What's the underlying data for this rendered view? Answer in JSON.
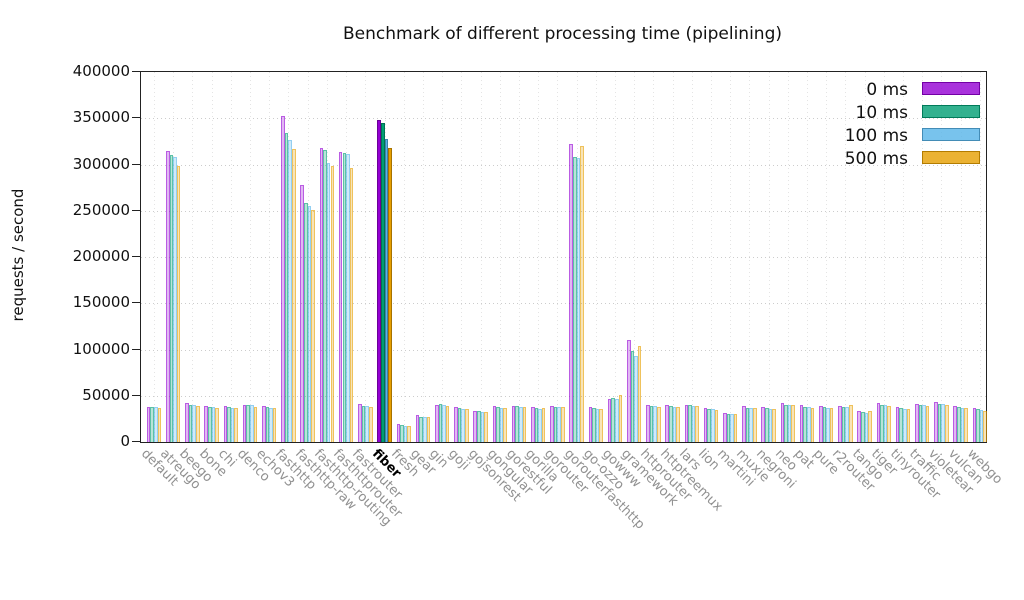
{
  "page_title": "Benchmark of different processing time (pipelining)",
  "chart_data": {
    "type": "bar",
    "title": "Benchmark of different processing time (pipelining)",
    "xlabel": "",
    "ylabel": "requests / second",
    "ylim": [
      0,
      400000
    ],
    "ytick_step": 50000,
    "grid": true,
    "legend_position": "top-right",
    "highlight_category": "fiber",
    "legend": [
      {
        "label": "0 ms",
        "color": "#9400d3"
      },
      {
        "label": "10 ms",
        "color": "#009e73"
      },
      {
        "label": "100 ms",
        "color": "#56b4e9"
      },
      {
        "label": "500 ms",
        "color": "#e69f00"
      }
    ],
    "categories": [
      "default",
      "atreugo",
      "beego",
      "bone",
      "chi",
      "denco",
      "echov3",
      "fasthttp",
      "fasthttp-raw",
      "fasthttp-routing",
      "fasthttprouter",
      "fastrouter",
      "fiber",
      "fresh",
      "gear",
      "gin",
      "goji",
      "gojsonrest",
      "gongular",
      "gorestful",
      "gorilla",
      "gorouter",
      "gorouterfasthttp",
      "go-ozzo",
      "gowww",
      "gramework",
      "httprouter",
      "httptreemux",
      "lars",
      "lion",
      "martini",
      "muxie",
      "negroni",
      "neo",
      "pat",
      "pure",
      "r2router",
      "tango",
      "tiger",
      "tinyrouter",
      "traffic",
      "violetear",
      "vulcan",
      "webgo"
    ],
    "series": [
      {
        "name": "0 ms",
        "values": [
          38000,
          315000,
          42000,
          38500,
          38500,
          40500,
          38500,
          352000,
          278000,
          318000,
          313000,
          41500,
          348000,
          19000,
          29000,
          40500,
          37500,
          34000,
          38500,
          39000,
          37500,
          39000,
          322000,
          37500,
          46500,
          110000,
          40000,
          39500,
          40000,
          37000,
          31500,
          38500,
          37500,
          42000,
          39500,
          38500,
          39000,
          33000,
          42000,
          37500,
          41500,
          43000,
          38500,
          36500
        ]
      },
      {
        "name": "10 ms",
        "values": [
          37500,
          310000,
          40500,
          37500,
          37500,
          39500,
          37500,
          334000,
          258000,
          316000,
          312000,
          39000,
          345000,
          18000,
          27500,
          41000,
          36500,
          33000,
          37500,
          38500,
          36500,
          38000,
          308000,
          36500,
          48000,
          98000,
          39000,
          38500,
          39500,
          36000,
          30500,
          37000,
          36500,
          40500,
          38000,
          37500,
          38000,
          32000,
          40000,
          36500,
          40000,
          41500,
          37500,
          35500
        ]
      },
      {
        "name": "100 ms",
        "values": [
          37500,
          308000,
          40000,
          37500,
          37000,
          39500,
          37000,
          327000,
          255000,
          302000,
          311000,
          39000,
          328000,
          17500,
          27000,
          40000,
          36000,
          32500,
          37000,
          38000,
          36000,
          38000,
          307000,
          36000,
          47000,
          93000,
          39000,
          38000,
          39000,
          35500,
          30500,
          37000,
          36000,
          40000,
          37500,
          37000,
          37500,
          31500,
          39500,
          36000,
          39500,
          41000,
          37000,
          35000
        ]
      },
      {
        "name": "500 ms",
        "values": [
          36500,
          298000,
          39000,
          37000,
          36500,
          38000,
          36500,
          317000,
          251000,
          298000,
          296000,
          38000,
          318000,
          17500,
          26500,
          38500,
          35500,
          32000,
          36500,
          37500,
          37000,
          37500,
          320000,
          36000,
          50500,
          104000,
          38000,
          38000,
          38500,
          35000,
          30000,
          36500,
          36000,
          39500,
          37000,
          36500,
          40000,
          33000,
          39000,
          35500,
          39000,
          40000,
          36500,
          34000
        ]
      }
    ]
  }
}
